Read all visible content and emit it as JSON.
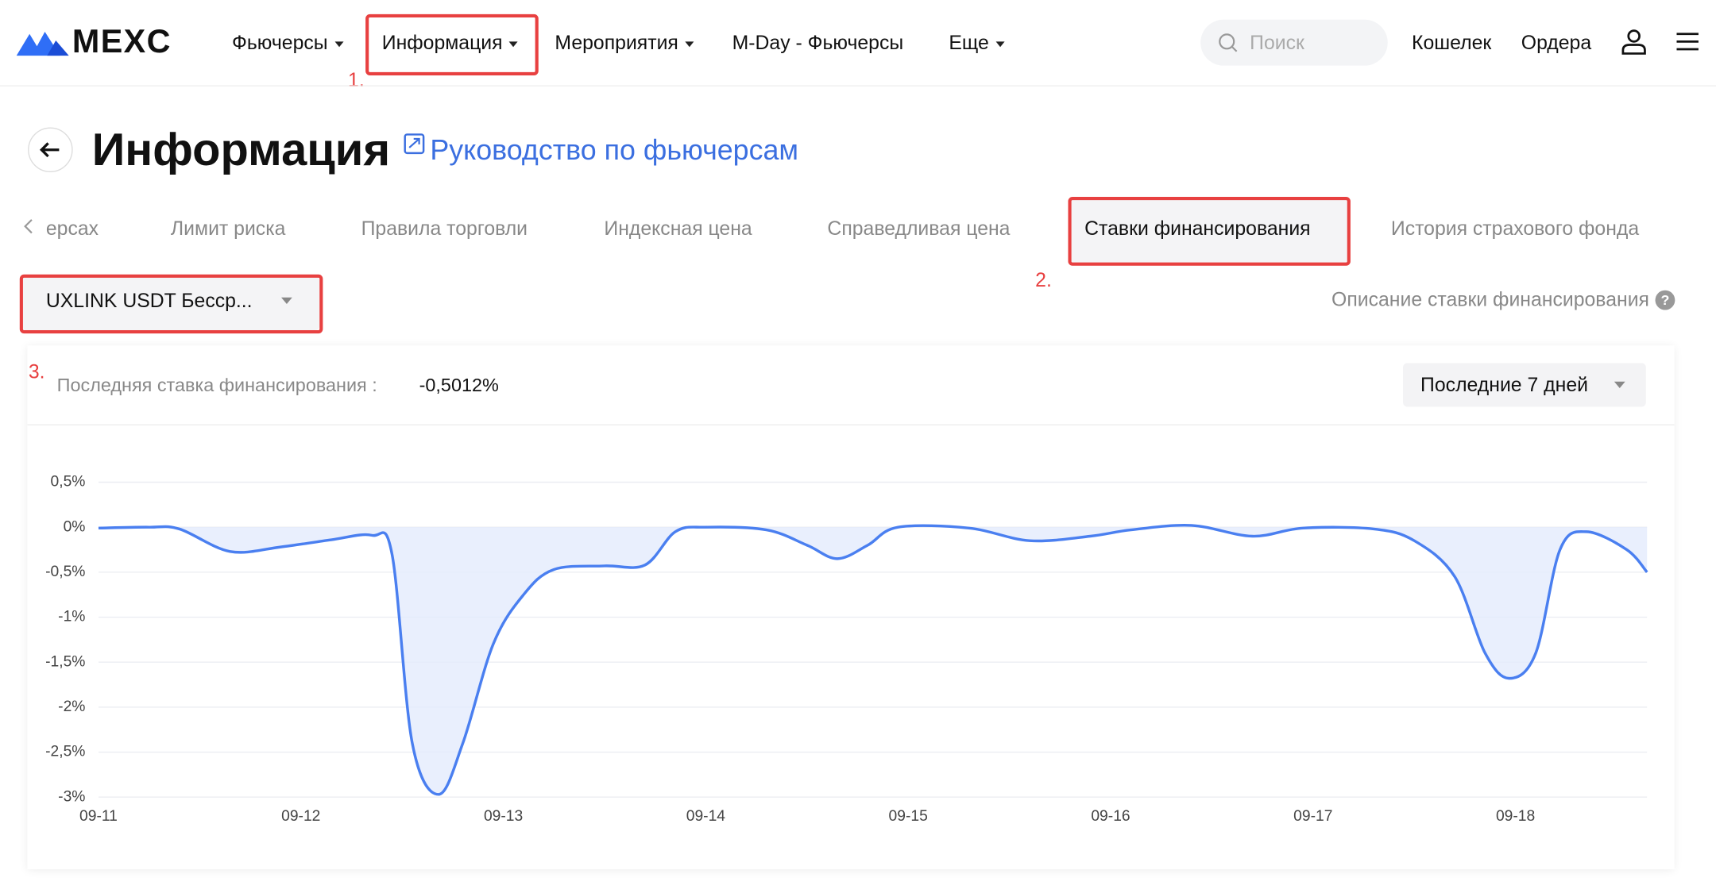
{
  "nav": {
    "logo": "MEXC",
    "items": [
      "Фьючерсы",
      "Информация",
      "Мероприятия",
      "M-Day - Фьючерсы",
      "Еще"
    ],
    "search": "Поиск",
    "wallet": "Кошелек",
    "orders": "Ордера"
  },
  "header": {
    "title": "Информация",
    "guide": "Руководство по фьючерсам"
  },
  "tabs": [
    "ерсах",
    "Лимит риска",
    "Правила торговли",
    "Индексная цена",
    "Справедливая цена",
    "Ставки финансирования",
    "История страхового фонда"
  ],
  "annotations": [
    "1.",
    "2.",
    "3."
  ],
  "selector": "UXLINK USDT Бесср...",
  "funding_description": "Описание ставки финансирования",
  "latest_label": "Последняя ставка финансирования :",
  "latest_value": "-0,5012%",
  "period": "Последние 7 дней",
  "chart_data": {
    "type": "line",
    "color": "#4a7ff0",
    "fill": "#e3ebfc",
    "grid": true,
    "x": [
      0,
      0.25,
      0.4,
      0.65,
      0.9,
      1.15,
      1.35,
      1.45,
      1.55,
      1.68,
      1.8,
      1.95,
      2.1,
      2.25,
      2.5,
      2.7,
      2.85,
      3.0,
      3.3,
      3.5,
      3.65,
      3.8,
      3.95,
      4.3,
      4.6,
      4.9,
      5.1,
      5.4,
      5.7,
      5.95,
      6.3,
      6.5,
      6.7,
      6.85,
      6.97,
      7.1,
      7.22,
      7.35,
      7.55,
      7.65
    ],
    "values": [
      -0.01,
      0,
      -0.02,
      -0.27,
      -0.22,
      -0.14,
      -0.09,
      -0.3,
      -2.4,
      -2.97,
      -2.4,
      -1.3,
      -0.75,
      -0.47,
      -0.43,
      -0.42,
      -0.05,
      0,
      -0.03,
      -0.2,
      -0.35,
      -0.2,
      0,
      -0.01,
      -0.15,
      -0.1,
      -0.03,
      0.02,
      -0.1,
      -0.01,
      -0.02,
      -0.15,
      -0.55,
      -1.4,
      -1.68,
      -1.4,
      -0.25,
      -0.05,
      -0.25,
      -0.5
    ],
    "xlim": [
      0,
      7.65
    ],
    "xticks": [
      {
        "value": 0,
        "label": "09-11"
      },
      {
        "value": 1,
        "label": "09-12"
      },
      {
        "value": 2,
        "label": "09-13"
      },
      {
        "value": 3,
        "label": "09-14"
      },
      {
        "value": 4,
        "label": "09-15"
      },
      {
        "value": 5,
        "label": "09-16"
      },
      {
        "value": 6,
        "label": "09-17"
      },
      {
        "value": 7,
        "label": "09-18"
      }
    ],
    "ylim": [
      -3,
      0.5
    ],
    "yticks": [
      {
        "value": 0.5,
        "label": "0,5%"
      },
      {
        "value": 0,
        "label": "0%"
      },
      {
        "value": -0.5,
        "label": "-0,5%"
      },
      {
        "value": -1,
        "label": "-1%"
      },
      {
        "value": -1.5,
        "label": "-1,5%"
      },
      {
        "value": -2,
        "label": "-2%"
      },
      {
        "value": -2.5,
        "label": "-2,5%"
      },
      {
        "value": -3,
        "label": "-3%"
      }
    ]
  }
}
